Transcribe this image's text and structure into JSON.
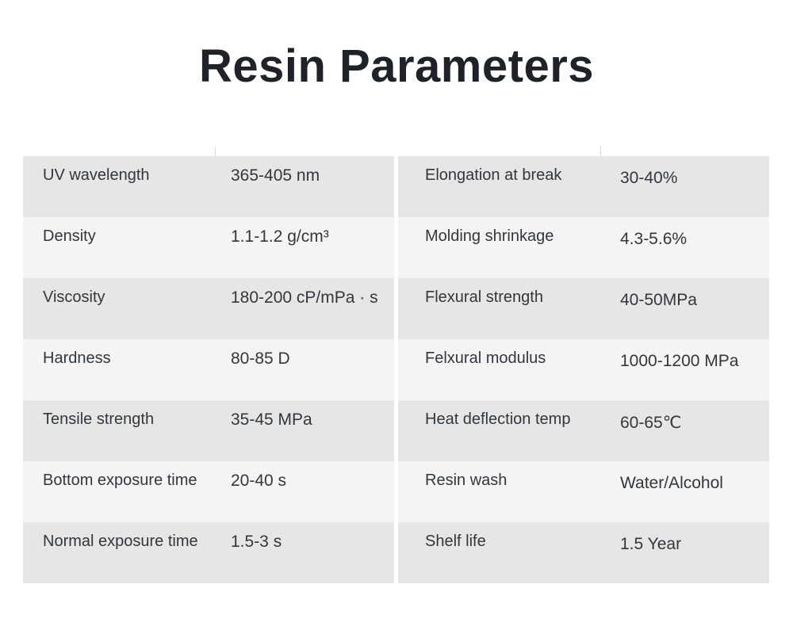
{
  "title": "Resin Parameters",
  "left_table": [
    {
      "label": "UV wavelength",
      "value": "365-405 nm"
    },
    {
      "label": "Density",
      "value": "1.1-1.2 g/cm³"
    },
    {
      "label": "Viscosity",
      "value": "180-200 cP/mPa · s"
    },
    {
      "label": "Hardness",
      "value": "80-85 D"
    },
    {
      "label": "Tensile strength",
      "value": "35-45 MPa"
    },
    {
      "label": "Bottom exposure time",
      "value": "20-40 s"
    },
    {
      "label": "Normal exposure time",
      "value": "1.5-3 s"
    }
  ],
  "right_table": [
    {
      "label": "Elongation at break",
      "value": "30-40%"
    },
    {
      "label": "Molding shrinkage",
      "value": "4.3-5.6%"
    },
    {
      "label": "Flexural strength",
      "value": "40-50MPa"
    },
    {
      "label": "Felxural modulus",
      "value": "1000-1200 MPa"
    },
    {
      "label": "Heat deflection temp",
      "value": "60-65℃"
    },
    {
      "label": "Resin wash",
      "value": "Water/Alcohol"
    },
    {
      "label": "Shelf life",
      "value": "1.5 Year"
    }
  ],
  "colors": {
    "row_dark": "#e6e6e6",
    "row_light": "#f4f4f4",
    "title": "#1f2329"
  }
}
